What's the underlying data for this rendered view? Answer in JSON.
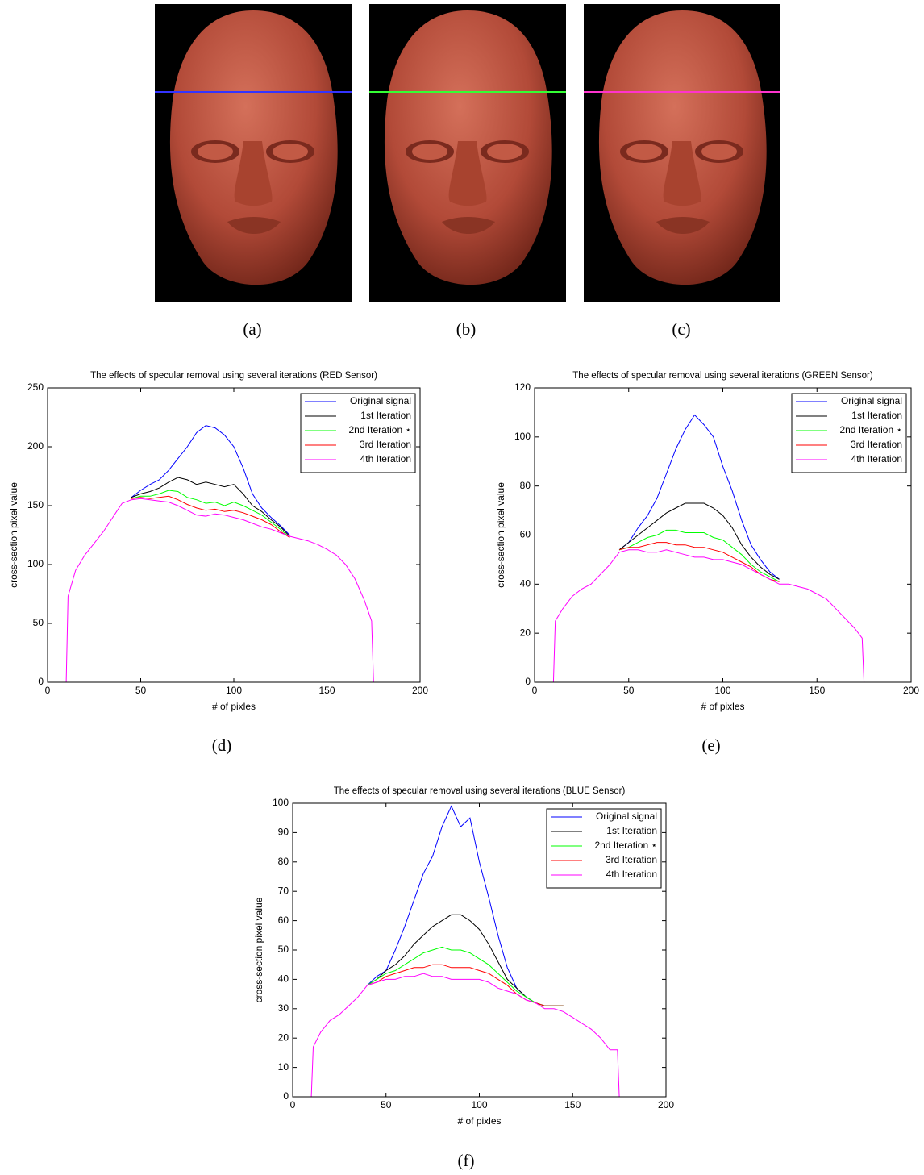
{
  "images": [
    {
      "caption": "(a)"
    },
    {
      "caption": "(b)"
    },
    {
      "caption": "(c)"
    }
  ],
  "chart_data": [
    {
      "type": "line",
      "title": "The effects of specular removal using several iterations (RED Sensor)",
      "xlabel": "# of pixles",
      "ylabel": "cross-section pixel value",
      "caption": "(d)",
      "x": [
        10,
        11,
        15,
        20,
        25,
        30,
        35,
        40,
        45,
        50,
        55,
        60,
        65,
        70,
        75,
        80,
        85,
        90,
        95,
        100,
        105,
        110,
        115,
        120,
        125,
        130,
        135,
        140,
        145,
        150,
        155,
        160,
        165,
        170,
        174,
        175
      ],
      "xlim": [
        0,
        200
      ],
      "xticks": [
        0,
        50,
        100,
        150,
        200
      ],
      "ylim": [
        0,
        250
      ],
      "yticks": [
        0,
        50,
        100,
        150,
        200,
        250
      ],
      "legend": "upper right",
      "series": [
        {
          "name": "Original signal",
          "color": "#0000ff",
          "values": [
            null,
            null,
            null,
            null,
            null,
            null,
            null,
            null,
            157,
            163,
            168,
            172,
            180,
            190,
            200,
            212,
            218,
            216,
            210,
            200,
            182,
            160,
            148,
            140,
            133,
            125,
            null,
            null,
            null,
            null,
            null,
            null,
            null,
            null,
            null,
            null
          ]
        },
        {
          "name": "1st Iteration",
          "color": "#000000",
          "values": [
            null,
            null,
            null,
            null,
            null,
            null,
            null,
            null,
            157,
            160,
            162,
            165,
            170,
            174,
            172,
            168,
            170,
            168,
            166,
            168,
            160,
            150,
            145,
            138,
            132,
            124,
            null,
            null,
            null,
            null,
            null,
            null,
            null,
            null,
            null,
            null
          ]
        },
        {
          "name": "2nd Iteration ⋆",
          "color": "#00ff00",
          "values": [
            null,
            null,
            null,
            null,
            null,
            null,
            null,
            null,
            156,
            158,
            158,
            160,
            163,
            162,
            157,
            155,
            152,
            153,
            150,
            153,
            150,
            146,
            142,
            136,
            130,
            123,
            null,
            null,
            null,
            null,
            null,
            null,
            null,
            null,
            null,
            null
          ]
        },
        {
          "name": "3rd Iteration",
          "color": "#ff0000",
          "values": [
            null,
            null,
            null,
            null,
            null,
            null,
            null,
            null,
            156,
            157,
            156,
            157,
            158,
            155,
            151,
            148,
            146,
            147,
            145,
            146,
            144,
            141,
            138,
            134,
            128,
            123,
            null,
            null,
            null,
            null,
            null,
            null,
            null,
            null,
            null,
            null
          ]
        },
        {
          "name": "4th Iteration",
          "color": "#ff00ff",
          "values": [
            0,
            73,
            95,
            108,
            118,
            128,
            140,
            152,
            155,
            156,
            155,
            154,
            153,
            150,
            146,
            142,
            141,
            143,
            142,
            140,
            138,
            135,
            132,
            130,
            127,
            124,
            122,
            120,
            117,
            113,
            108,
            100,
            88,
            70,
            52,
            0
          ]
        }
      ]
    },
    {
      "type": "line",
      "title": "The effects of specular removal using several iterations (GREEN Sensor)",
      "xlabel": "# of pixles",
      "ylabel": "cross-section pixel value",
      "caption": "(e)",
      "x": [
        10,
        11,
        15,
        20,
        25,
        30,
        35,
        40,
        45,
        50,
        55,
        60,
        65,
        70,
        75,
        80,
        85,
        90,
        95,
        100,
        105,
        110,
        115,
        120,
        125,
        130,
        135,
        140,
        145,
        150,
        155,
        160,
        165,
        170,
        174,
        175
      ],
      "xlim": [
        0,
        200
      ],
      "xticks": [
        0,
        50,
        100,
        150,
        200
      ],
      "ylim": [
        0,
        120
      ],
      "yticks": [
        0,
        20,
        40,
        60,
        80,
        100,
        120
      ],
      "legend": "upper right",
      "series": [
        {
          "name": "Original signal",
          "color": "#0000ff",
          "values": [
            null,
            null,
            null,
            null,
            null,
            null,
            null,
            null,
            54,
            57,
            63,
            68,
            75,
            85,
            95,
            103,
            109,
            105,
            100,
            88,
            78,
            66,
            56,
            50,
            45,
            42,
            null,
            null,
            null,
            null,
            null,
            null,
            null,
            null,
            null,
            null
          ]
        },
        {
          "name": "1st Iteration",
          "color": "#000000",
          "values": [
            null,
            null,
            null,
            null,
            null,
            null,
            null,
            null,
            54,
            57,
            60,
            63,
            66,
            69,
            71,
            73,
            73,
            73,
            71,
            68,
            63,
            56,
            51,
            47,
            44,
            42,
            null,
            null,
            null,
            null,
            null,
            null,
            null,
            null,
            null,
            null
          ]
        },
        {
          "name": "2nd Iteration ⋆",
          "color": "#00ff00",
          "values": [
            null,
            null,
            null,
            null,
            null,
            null,
            null,
            null,
            54,
            55,
            57,
            59,
            60,
            62,
            62,
            61,
            61,
            61,
            59,
            58,
            55,
            52,
            48,
            45,
            43,
            41,
            null,
            null,
            null,
            null,
            null,
            null,
            null,
            null,
            null,
            null
          ]
        },
        {
          "name": "3rd Iteration",
          "color": "#ff0000",
          "values": [
            null,
            null,
            null,
            null,
            null,
            null,
            null,
            null,
            54,
            55,
            55,
            56,
            57,
            57,
            56,
            56,
            55,
            55,
            54,
            53,
            51,
            49,
            47,
            44,
            42,
            41,
            null,
            null,
            null,
            null,
            null,
            null,
            null,
            null,
            null,
            null
          ]
        },
        {
          "name": "4th Iteration",
          "color": "#ff00ff",
          "values": [
            0,
            25,
            30,
            35,
            38,
            40,
            44,
            48,
            53,
            54,
            54,
            53,
            53,
            54,
            53,
            52,
            51,
            51,
            50,
            50,
            49,
            48,
            46,
            44,
            42,
            40,
            40,
            39,
            38,
            36,
            34,
            30,
            26,
            22,
            18,
            0
          ]
        }
      ]
    },
    {
      "type": "line",
      "title": "The effects of specular removal using several iterations (BLUE Sensor)",
      "xlabel": "# of pixles",
      "ylabel": "cross-section pixel value",
      "caption": "(f)",
      "x": [
        10,
        11,
        15,
        20,
        25,
        30,
        35,
        40,
        45,
        50,
        55,
        60,
        65,
        70,
        75,
        80,
        85,
        90,
        95,
        100,
        105,
        110,
        115,
        120,
        125,
        130,
        135,
        140,
        145,
        150,
        155,
        160,
        165,
        170,
        174,
        175
      ],
      "xlim": [
        0,
        200
      ],
      "xticks": [
        0,
        50,
        100,
        150,
        200
      ],
      "ylim": [
        0,
        100
      ],
      "yticks": [
        0,
        10,
        20,
        30,
        40,
        50,
        60,
        70,
        80,
        90,
        100
      ],
      "legend": "upper right",
      "series": [
        {
          "name": "Original signal",
          "color": "#0000ff",
          "values": [
            null,
            null,
            null,
            null,
            null,
            null,
            null,
            38,
            41,
            43,
            50,
            58,
            67,
            76,
            82,
            92,
            99,
            92,
            95,
            80,
            68,
            55,
            44,
            37,
            34,
            32,
            31,
            31,
            31,
            null,
            null,
            null,
            null,
            null,
            null,
            null
          ]
        },
        {
          "name": "1st Iteration",
          "color": "#000000",
          "values": [
            null,
            null,
            null,
            null,
            null,
            null,
            null,
            38,
            40,
            43,
            45,
            48,
            52,
            55,
            58,
            60,
            62,
            62,
            60,
            57,
            52,
            46,
            40,
            37,
            34,
            32,
            31,
            31,
            31,
            null,
            null,
            null,
            null,
            null,
            null,
            null
          ]
        },
        {
          "name": "2nd Iteration ⋆",
          "color": "#00ff00",
          "values": [
            null,
            null,
            null,
            null,
            null,
            null,
            null,
            38,
            40,
            42,
            43,
            45,
            47,
            49,
            50,
            51,
            50,
            50,
            49,
            47,
            45,
            42,
            39,
            36,
            34,
            32,
            31,
            31,
            31,
            null,
            null,
            null,
            null,
            null,
            null,
            null
          ]
        },
        {
          "name": "3rd Iteration",
          "color": "#ff0000",
          "values": [
            null,
            null,
            null,
            null,
            null,
            null,
            null,
            38,
            39,
            41,
            42,
            43,
            44,
            44,
            45,
            45,
            44,
            44,
            44,
            43,
            42,
            40,
            38,
            35,
            33,
            32,
            31,
            31,
            31,
            null,
            null,
            null,
            null,
            null,
            null,
            null
          ]
        },
        {
          "name": "4th Iteration",
          "color": "#ff00ff",
          "values": [
            0,
            17,
            22,
            26,
            28,
            31,
            34,
            38,
            39,
            40,
            40,
            41,
            41,
            42,
            41,
            41,
            40,
            40,
            40,
            40,
            39,
            37,
            36,
            35,
            33,
            32,
            30,
            30,
            29,
            27,
            25,
            23,
            20,
            16,
            16,
            0
          ]
        }
      ]
    }
  ]
}
